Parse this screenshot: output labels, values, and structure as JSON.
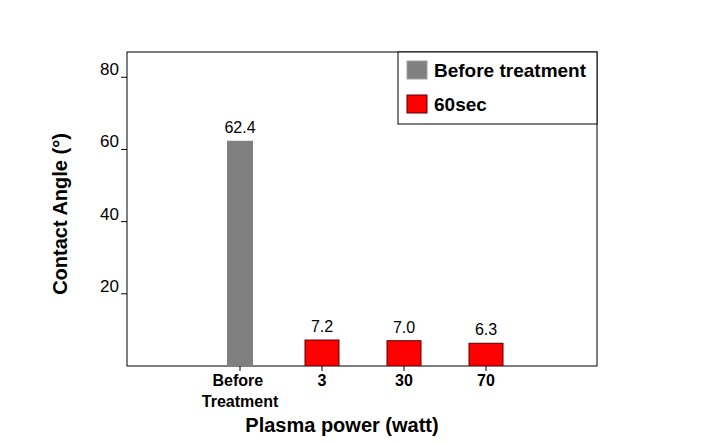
{
  "chart_data": {
    "type": "bar",
    "x_label": "Plasma power (watt)",
    "y_label": "Contact Angle (°)",
    "categories": [
      "Before Treatment",
      "3",
      "30",
      "70"
    ],
    "series": [
      {
        "name": "Before treatment",
        "color": "#808080",
        "values": [
          62.4,
          null,
          null,
          null
        ]
      },
      {
        "name": "60sec",
        "color": "#ff0000",
        "values": [
          null,
          7.2,
          7.0,
          6.3
        ],
        "value_labels": [
          null,
          "7.2",
          "7.0",
          "6.3"
        ]
      }
    ],
    "ylim": [
      0,
      87
    ],
    "yticks": [
      20,
      40,
      60,
      80
    ],
    "data_labels": true,
    "legend": "upper right",
    "grid": false
  }
}
